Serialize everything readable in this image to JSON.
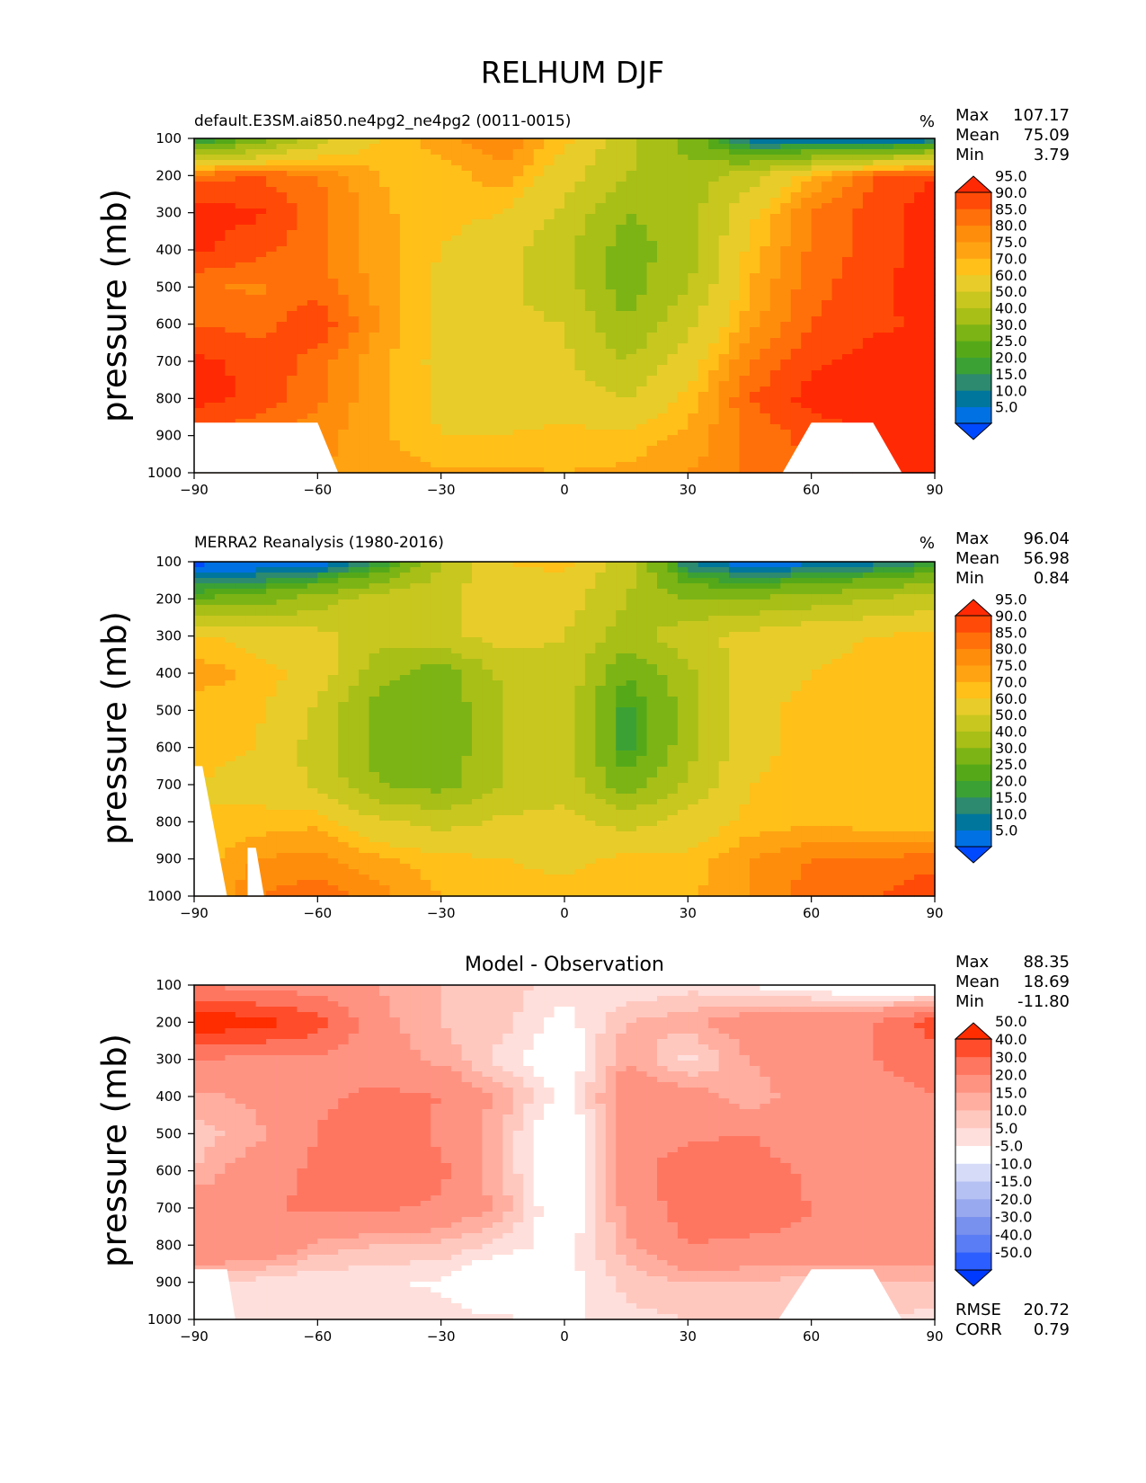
{
  "figure": {
    "title": "RELHUM DJF"
  },
  "colors": {
    "field": [
      "#0049ff",
      "#0071e3",
      "#00769c",
      "#2d8a6e",
      "#3ba135",
      "#55a919",
      "#7cb415",
      "#a8bf17",
      "#c8c71f",
      "#e8cc2a",
      "#ffc019",
      "#ffa312",
      "#ff8d0c",
      "#ff700a",
      "#ff4b07",
      "#ff2a03"
    ],
    "diff": [
      "#0039ff",
      "#2c5dff",
      "#5a7cf4",
      "#7890ee",
      "#98a9ef",
      "#b6c1f3",
      "#d6dcf8",
      "#ffffff",
      "#ffdfdb",
      "#ffc8bf",
      "#ffae9f",
      "#ff9382",
      "#ff7660",
      "#ff4d2b",
      "#ff2d00"
    ]
  },
  "chart_data": [
    {
      "type": "heatmap",
      "title": "",
      "subtitle": "default.E3SM.ai850.ne4pg2_ne4pg2 (0011-0015)",
      "units": "%",
      "ylabel": "pressure (mb)",
      "xlim": [
        -90,
        90
      ],
      "ylim": [
        1000,
        100
      ],
      "xticks": [
        "−90",
        "−60",
        "−30",
        "0",
        "30",
        "60",
        "90"
      ],
      "yticks": [
        "100",
        "200",
        "300",
        "400",
        "500",
        "600",
        "700",
        "800",
        "900",
        "1000"
      ],
      "stats": [
        {
          "label": "Max",
          "value": "107.17"
        },
        {
          "label": "Mean",
          "value": "75.09"
        },
        {
          "label": "Min",
          "value": "3.79"
        }
      ],
      "colorbar": {
        "levels": [
          "5.0",
          "10.0",
          "15.0",
          "20.0",
          "25.0",
          "30.0",
          "40.0",
          "50.0",
          "60.0",
          "70.0",
          "75.0",
          "80.0",
          "85.0",
          "90.0",
          "95.0"
        ],
        "palette": "field"
      },
      "masks": [
        {
          "lat": [
            -90,
            -60,
            -55
          ],
          "p": 865
        },
        {
          "lat": [
            53,
            60,
            75,
            82
          ],
          "p": 865
        }
      ],
      "lats": [
        -90,
        -75,
        -60,
        -45,
        -30,
        -15,
        0,
        15,
        30,
        45,
        60,
        75,
        90
      ],
      "levels_mb": [
        100,
        200,
        300,
        400,
        500,
        600,
        700,
        800,
        900,
        1000
      ],
      "values": [
        [
          15,
          30,
          55,
          70,
          78,
          85,
          72,
          55,
          35,
          10,
          5,
          5,
          10
        ],
        [
          88,
          90,
          85,
          75,
          72,
          78,
          65,
          50,
          45,
          55,
          75,
          90,
          95
        ],
        [
          97,
          96,
          88,
          76,
          72,
          70,
          58,
          40,
          45,
          68,
          85,
          92,
          98
        ],
        [
          96,
          92,
          86,
          77,
          70,
          65,
          52,
          35,
          45,
          72,
          86,
          92,
          98
        ],
        [
          86,
          84,
          88,
          78,
          68,
          62,
          55,
          35,
          50,
          75,
          88,
          94,
          98
        ],
        [
          90,
          88,
          94,
          80,
          68,
          62,
          60,
          40,
          58,
          78,
          90,
          94,
          96
        ],
        [
          96,
          94,
          88,
          76,
          68,
          64,
          62,
          50,
          65,
          85,
          94,
          97,
          98
        ],
        [
          97,
          94,
          86,
          76,
          68,
          66,
          65,
          60,
          72,
          90,
          97,
          98,
          98
        ],
        [
          88,
          86,
          82,
          76,
          70,
          70,
          72,
          72,
          76,
          86,
          92,
          95,
          98
        ],
        [
          84,
          82,
          80,
          78,
          76,
          76,
          75,
          76,
          80,
          86,
          90,
          94,
          98
        ]
      ]
    },
    {
      "type": "heatmap",
      "title": "",
      "subtitle": "MERRA2 Reanalysis (1980-2016)",
      "units": "%",
      "ylabel": "pressure (mb)",
      "xlim": [
        -90,
        90
      ],
      "ylim": [
        1000,
        100
      ],
      "xticks": [
        "−90",
        "−60",
        "−30",
        "0",
        "30",
        "60",
        "90"
      ],
      "yticks": [
        "100",
        "200",
        "300",
        "400",
        "500",
        "600",
        "700",
        "800",
        "900",
        "1000"
      ],
      "stats": [
        {
          "label": "Max",
          "value": "96.04"
        },
        {
          "label": "Mean",
          "value": "56.98"
        },
        {
          "label": "Min",
          "value": "0.84"
        }
      ],
      "colorbar": {
        "levels": [
          "5.0",
          "10.0",
          "15.0",
          "20.0",
          "25.0",
          "30.0",
          "40.0",
          "50.0",
          "60.0",
          "70.0",
          "75.0",
          "80.0",
          "85.0",
          "90.0",
          "95.0"
        ],
        "palette": "field"
      },
      "masks": [
        {
          "lat": [
            -90,
            -88,
            -82
          ],
          "p": 650
        },
        {
          "lat": [
            -77,
            -75,
            -73
          ],
          "p": 870
        }
      ],
      "lats": [
        -90,
        -75,
        -60,
        -45,
        -30,
        -15,
        0,
        15,
        30,
        45,
        60,
        75,
        90
      ],
      "levels_mb": [
        100,
        200,
        300,
        400,
        500,
        600,
        700,
        800,
        900,
        1000
      ],
      "values": [
        [
          3,
          3,
          5,
          20,
          50,
          70,
          72,
          55,
          15,
          5,
          8,
          12,
          20
        ],
        [
          30,
          35,
          45,
          55,
          58,
          66,
          65,
          50,
          40,
          40,
          45,
          50,
          55
        ],
        [
          72,
          66,
          64,
          52,
          58,
          64,
          60,
          45,
          56,
          64,
          68,
          70,
          72
        ],
        [
          78,
          74,
          66,
          44,
          34,
          52,
          58,
          30,
          48,
          66,
          70,
          72,
          72
        ],
        [
          72,
          72,
          58,
          35,
          32,
          50,
          56,
          22,
          44,
          68,
          72,
          72,
          75
        ],
        [
          72,
          70,
          56,
          35,
          32,
          50,
          56,
          22,
          46,
          68,
          72,
          72,
          75
        ],
        [
          70,
          68,
          58,
          40,
          36,
          50,
          56,
          34,
          52,
          70,
          72,
          72,
          72
        ],
        [
          70,
          72,
          74,
          62,
          56,
          62,
          64,
          56,
          64,
          72,
          74,
          72,
          72
        ],
        [
          72,
          80,
          82,
          76,
          72,
          70,
          68,
          72,
          72,
          80,
          85,
          85,
          88
        ],
        [
          72,
          85,
          88,
          82,
          75,
          74,
          72,
          74,
          74,
          80,
          88,
          90,
          94
        ]
      ]
    },
    {
      "type": "heatmap",
      "title": "Model - Observation",
      "subtitle": "",
      "units": "",
      "ylabel": "pressure (mb)",
      "xlim": [
        -90,
        90
      ],
      "ylim": [
        1000,
        100
      ],
      "xticks": [
        "−90",
        "−60",
        "−30",
        "0",
        "30",
        "60",
        "90"
      ],
      "yticks": [
        "100",
        "200",
        "300",
        "400",
        "500",
        "600",
        "700",
        "800",
        "900",
        "1000"
      ],
      "stats": [
        {
          "label": "Max",
          "value": "88.35"
        },
        {
          "label": "Mean",
          "value": "18.69"
        },
        {
          "label": "Min",
          "value": "-11.80"
        }
      ],
      "extra_stats": [
        {
          "label": "RMSE",
          "value": "20.72"
        },
        {
          "label": "CORR",
          "value": "0.79"
        }
      ],
      "colorbar": {
        "levels": [
          "-50.0",
          "-40.0",
          "-30.0",
          "-20.0",
          "-15.0",
          "-10.0",
          "-5.0",
          "5.0",
          "10.0",
          "15.0",
          "20.0",
          "30.0",
          "40.0",
          "50.0"
        ],
        "palette": "diff"
      },
      "masks": [
        {
          "lat": [
            -90,
            -82,
            -80
          ],
          "p": 865
        },
        {
          "lat": [
            52,
            60,
            75,
            82
          ],
          "p": 865
        }
      ],
      "lats": [
        -90,
        -75,
        -60,
        -45,
        -30,
        -15,
        0,
        15,
        30,
        45,
        60,
        75,
        90
      ],
      "levels_mb": [
        100,
        200,
        300,
        400,
        500,
        600,
        700,
        800,
        900,
        1000
      ],
      "values": [
        [
          30,
          25,
          25,
          20,
          15,
          12,
          8,
          5,
          8,
          4,
          0,
          -5,
          -8
        ],
        [
          58,
          55,
          45,
          22,
          15,
          12,
          2,
          15,
          18,
          25,
          28,
          30,
          45
        ],
        [
          30,
          28,
          28,
          25,
          18,
          8,
          -2,
          20,
          8,
          20,
          30,
          30,
          35
        ],
        [
          18,
          22,
          28,
          32,
          30,
          18,
          2,
          25,
          25,
          15,
          25,
          25,
          30
        ],
        [
          12,
          18,
          30,
          40,
          28,
          15,
          -6,
          26,
          28,
          30,
          22,
          25,
          25
        ],
        [
          15,
          25,
          32,
          38,
          32,
          15,
          -6,
          25,
          36,
          35,
          28,
          25,
          25
        ],
        [
          25,
          28,
          32,
          32,
          28,
          18,
          -4,
          22,
          35,
          36,
          30,
          25,
          25
        ],
        [
          28,
          30,
          18,
          15,
          14,
          8,
          2,
          18,
          30,
          28,
          28,
          25,
          25
        ],
        [
          12,
          8,
          6,
          6,
          4,
          -6,
          2,
          12,
          15,
          15,
          12,
          15,
          15
        ],
        [
          12,
          8,
          5,
          6,
          8,
          6,
          4,
          8,
          10,
          12,
          10,
          10,
          8
        ]
      ]
    }
  ]
}
